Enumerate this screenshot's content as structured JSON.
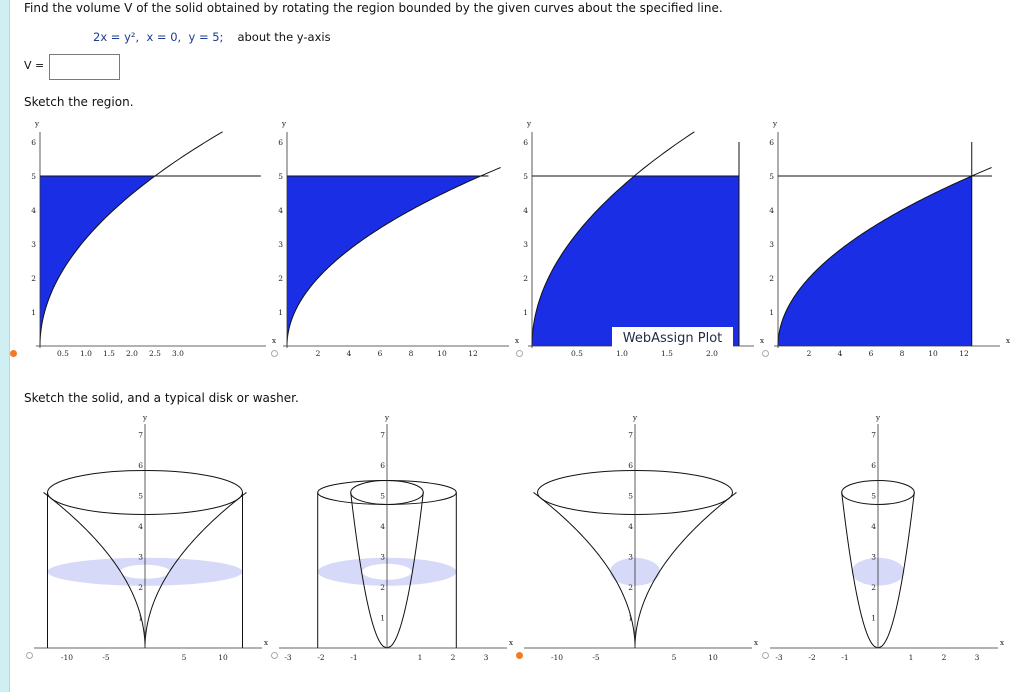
{
  "question": {
    "prompt": "Find the volume V of the solid obtained by rotating the region bounded by the given curves about the specified line.",
    "equations": "2x = y²,  x = 0,  y = 5;",
    "axis_note": "about the y-axis",
    "v_label": "V =",
    "answer_value": ""
  },
  "sections": {
    "sketch_region": "Sketch the region.",
    "sketch_solid": "Sketch the solid, and a typical disk or washer."
  },
  "watermark": "WebAssign Plot",
  "colors": {
    "region_fill": "#1a2ee6",
    "disk_fill": "#d6d9f7",
    "accent": "#f07a2a"
  },
  "selection": {
    "region_option": 1,
    "solid_option": 3
  },
  "region_plots": [
    {
      "option": 1,
      "x_ticks": [
        "0.5",
        "1.0",
        "1.5",
        "2.0",
        "2.5",
        "3.0"
      ],
      "y_ticks": [
        "1",
        "2",
        "3",
        "4",
        "5",
        "6"
      ],
      "axis_x": "x",
      "axis_y": "y",
      "selected": true
    },
    {
      "option": 2,
      "x_ticks": [
        "2",
        "4",
        "6",
        "8",
        "10",
        "12"
      ],
      "y_ticks": [
        "1",
        "2",
        "3",
        "4",
        "5",
        "6"
      ],
      "axis_x": "x",
      "axis_y": "y",
      "selected": false
    },
    {
      "option": 3,
      "x_ticks": [
        "0.5",
        "1.0",
        "1.5",
        "2.0"
      ],
      "y_ticks": [
        "1",
        "2",
        "3",
        "4",
        "5",
        "6"
      ],
      "axis_x": "x",
      "axis_y": "y",
      "selected": false
    },
    {
      "option": 4,
      "x_ticks": [
        "2",
        "4",
        "6",
        "8",
        "10",
        "12"
      ],
      "y_ticks": [
        "1",
        "2",
        "3",
        "4",
        "5",
        "6"
      ],
      "axis_x": "x",
      "axis_y": "y",
      "selected": false
    }
  ],
  "solid_plots": [
    {
      "option": 1,
      "x_ticks": [
        "-10",
        "-5",
        "5",
        "10"
      ],
      "y_ticks": [
        "1",
        "2",
        "3",
        "4",
        "5",
        "6",
        "7"
      ],
      "axis_x": "x",
      "axis_y": "y",
      "selected": false
    },
    {
      "option": 2,
      "x_ticks": [
        "-3",
        "-2",
        "-1",
        "1",
        "2",
        "3"
      ],
      "y_ticks": [
        "1",
        "2",
        "3",
        "4",
        "5",
        "6",
        "7"
      ],
      "axis_x": "x",
      "axis_y": "y",
      "selected": false
    },
    {
      "option": 3,
      "x_ticks": [
        "-10",
        "-5",
        "5",
        "10"
      ],
      "y_ticks": [
        "1",
        "2",
        "3",
        "4",
        "5",
        "6",
        "7"
      ],
      "axis_x": "x",
      "axis_y": "y",
      "selected": true
    },
    {
      "option": 4,
      "x_ticks": [
        "-3",
        "-2",
        "-1",
        "1",
        "2",
        "3"
      ],
      "y_ticks": [
        "1",
        "2",
        "3",
        "4",
        "5",
        "6",
        "7"
      ],
      "axis_x": "x",
      "axis_y": "y",
      "selected": false
    }
  ]
}
